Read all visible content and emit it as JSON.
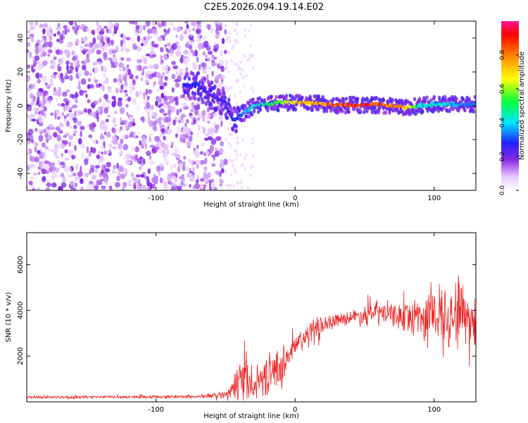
{
  "title": "C2E5.2026.094.19.14.E02",
  "colors": {
    "axis": "#000000",
    "snr_line": "#ee2222",
    "background": "#ffffff"
  },
  "chart_data": [
    {
      "type": "heatmap",
      "name": "spectrogram",
      "xlabel": "Height of straight line (km)",
      "ylabel": "Frequency (Hz)",
      "xlim": [
        -193,
        130
      ],
      "ylim": [
        -50,
        50
      ],
      "x_ticks": [
        -100,
        0,
        100
      ],
      "y_ticks": [
        -40,
        -20,
        0,
        20,
        40
      ],
      "colorbar": {
        "label": "Normalized spectral amplitude",
        "range": [
          0,
          1
        ],
        "ticks": [
          "0.0",
          "0.2",
          "0.4",
          "0.6",
          "0.8"
        ],
        "tick_values": [
          0.0,
          0.2,
          0.4,
          0.6,
          0.8
        ]
      },
      "ridge": {
        "x": [
          -80,
          -70,
          -60,
          -50,
          -45,
          -40,
          -35,
          -30,
          -20,
          -10,
          0,
          10,
          20,
          30,
          40,
          50,
          60,
          70,
          80,
          90,
          100,
          110,
          120,
          130
        ],
        "freq": [
          12,
          12,
          6,
          2,
          -9,
          -6,
          -3,
          0,
          1,
          2,
          2,
          1.5,
          1,
          0.5,
          0.5,
          0.5,
          0.5,
          0,
          -1,
          0,
          1,
          1,
          0.5,
          1
        ],
        "amplitude": [
          0.3,
          0.3,
          0.25,
          0.25,
          0.3,
          0.35,
          0.4,
          0.45,
          0.5,
          0.6,
          0.75,
          0.8,
          0.85,
          0.9,
          0.95,
          0.95,
          0.9,
          0.85,
          0.8,
          0.45,
          0.45,
          0.45,
          0.4,
          0.35
        ]
      },
      "noise_region": {
        "x_range": [
          -193,
          -50
        ],
        "amplitude_range": [
          0.05,
          0.2
        ]
      }
    },
    {
      "type": "line",
      "name": "snr",
      "xlabel": "Height of straight line (km)",
      "ylabel": "SNR (10 * v/v)",
      "xlim": [
        -193,
        130
      ],
      "ylim": [
        0,
        7400
      ],
      "x_ticks": [
        -100,
        0,
        100
      ],
      "y_ticks": [
        2000,
        4000,
        6000
      ],
      "envelope": {
        "x": [
          -193,
          -150,
          -100,
          -70,
          -50,
          -45,
          -40,
          -37,
          -35,
          -30,
          -25,
          -20,
          -10,
          -5,
          0,
          10,
          20,
          30,
          40,
          50,
          60,
          70,
          80,
          90,
          100,
          110,
          115,
          120,
          125,
          130
        ],
        "mean": [
          200,
          210,
          220,
          230,
          300,
          500,
          1000,
          1500,
          1100,
          600,
          1000,
          1200,
          1500,
          2000,
          2400,
          3000,
          3400,
          3600,
          3700,
          3800,
          3900,
          3800,
          3700,
          3800,
          3700,
          4000,
          3900,
          4000,
          3800,
          3600
        ],
        "spread": [
          60,
          70,
          70,
          80,
          150,
          400,
          1200,
          1800,
          900,
          500,
          800,
          900,
          900,
          700,
          600,
          600,
          400,
          300,
          300,
          500,
          600,
          500,
          700,
          1000,
          1300,
          1600,
          1800,
          1700,
          1500,
          1200
        ]
      }
    }
  ]
}
